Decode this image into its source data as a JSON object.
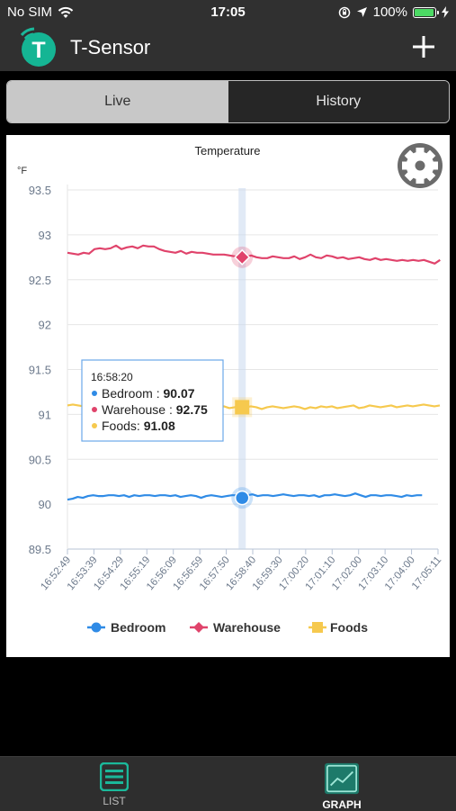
{
  "status_bar": {
    "carrier": "No SIM",
    "time": "17:05",
    "battery": "100%",
    "battery_level": 1.0
  },
  "header": {
    "logo_letter": "T",
    "title": "T-Sensor",
    "add_icon": "plus-icon"
  },
  "segments": {
    "live": "Live",
    "history": "History",
    "active": "live"
  },
  "chart_data": {
    "type": "line",
    "title": "Temperature",
    "unit": "°F",
    "ylim": [
      89.5,
      93.5
    ],
    "yticks": [
      "93.5",
      "93",
      "92.5",
      "92",
      "91.5",
      "91",
      "90.5",
      "90",
      "89.5"
    ],
    "ytick_values": [
      93.5,
      93,
      92.5,
      92,
      91.5,
      91,
      90.5,
      90,
      89.5
    ],
    "xticks": [
      "16:52:49",
      "16:53:39",
      "16:54:29",
      "16:55:19",
      "16:56:09",
      "16:56:59",
      "16:57:50",
      "16:58:40",
      "16:59:30",
      "17:00:20",
      "17:01:10",
      "17:02:00",
      "17:03:10",
      "17:04:00",
      "17:05:11"
    ],
    "grid": true,
    "legend_position": "bottom",
    "series": [
      {
        "name": "Bedroom",
        "color": "#2f8be6",
        "marker": "circle",
        "values": [
          90.05,
          90.06,
          90.08,
          90.07,
          90.09,
          90.1,
          90.09,
          90.09,
          90.1,
          90.1,
          90.09,
          90.1,
          90.08,
          90.1,
          90.09,
          90.1,
          90.1,
          90.09,
          90.1,
          90.1,
          90.09,
          90.1,
          90.08,
          90.09,
          90.1,
          90.09,
          90.07,
          90.09,
          90.1,
          90.09,
          90.08,
          90.09,
          90.1,
          90.1,
          90.09,
          90.1,
          90.11,
          90.09,
          90.1,
          90.1,
          90.09,
          90.1,
          90.11,
          90.1,
          90.09,
          90.1,
          90.1,
          90.09,
          90.1,
          90.08,
          90.1,
          90.1,
          90.11,
          90.1,
          90.09,
          90.1,
          90.12,
          90.1,
          90.08,
          90.1,
          90.1,
          90.09,
          90.1,
          90.1,
          90.09,
          90.08,
          90.1,
          90.09,
          90.1,
          90.1
        ]
      },
      {
        "name": "Warehouse",
        "color": "#e0436b",
        "marker": "diamond",
        "values": [
          92.8,
          92.79,
          92.78,
          92.8,
          92.79,
          92.84,
          92.85,
          92.84,
          92.85,
          92.88,
          92.84,
          92.86,
          92.87,
          92.85,
          92.88,
          92.87,
          92.87,
          92.84,
          92.82,
          92.81,
          92.8,
          92.82,
          92.79,
          92.81,
          92.8,
          92.8,
          92.79,
          92.78,
          92.78,
          92.78,
          92.77,
          92.76,
          92.75,
          92.75,
          92.77,
          92.75,
          92.74,
          92.74,
          92.76,
          92.75,
          92.74,
          92.74,
          92.76,
          92.73,
          92.75,
          92.78,
          92.75,
          92.74,
          92.77,
          92.76,
          92.74,
          92.75,
          92.73,
          92.74,
          92.75,
          92.73,
          92.72,
          92.74,
          92.72,
          92.73,
          92.72,
          92.71,
          92.72,
          92.71,
          92.72,
          92.71,
          92.72,
          92.7,
          92.68,
          92.72
        ]
      },
      {
        "name": "Foods",
        "color": "#f6c94e",
        "marker": "square",
        "values": [
          91.1,
          91.11,
          91.1,
          91.09,
          91.1,
          91.08,
          91.11,
          91.1,
          91.09,
          91.1,
          91.08,
          91.1,
          91.09,
          91.11,
          91.08,
          91.1,
          91.07,
          91.09,
          91.08,
          91.09,
          91.08,
          91.07,
          91.09,
          91.08,
          91.08,
          91.09,
          91.08,
          91.07,
          91.08,
          91.09,
          91.07,
          91.08,
          91.09,
          91.08,
          91.09,
          91.08,
          91.06,
          91.08,
          91.09,
          91.08,
          91.07,
          91.08,
          91.09,
          91.08,
          91.06,
          91.08,
          91.07,
          91.09,
          91.08,
          91.09,
          91.07,
          91.08,
          91.09,
          91.1,
          91.07,
          91.08,
          91.1,
          91.09,
          91.08,
          91.09,
          91.1,
          91.08,
          91.09,
          91.1,
          91.09,
          91.1,
          91.11,
          91.1,
          91.09,
          91.1
        ]
      }
    ],
    "tooltip": {
      "time": "16:58:20",
      "rows": [
        {
          "label": "Bedroom : ",
          "value": "90.07"
        },
        {
          "label": "Warehouse : ",
          "value": "92.75"
        },
        {
          "label": "Foods: ",
          "value": "91.08"
        }
      ]
    },
    "crosshair_value": {
      "Bedroom": 90.07,
      "Warehouse": 92.75,
      "Foods": 91.08
    }
  },
  "settings_icon": "gear-icon",
  "tabbar": {
    "list": "LIST",
    "graph": "GRAPH",
    "list_icon": "list-icon",
    "graph_icon": "graph-icon"
  }
}
